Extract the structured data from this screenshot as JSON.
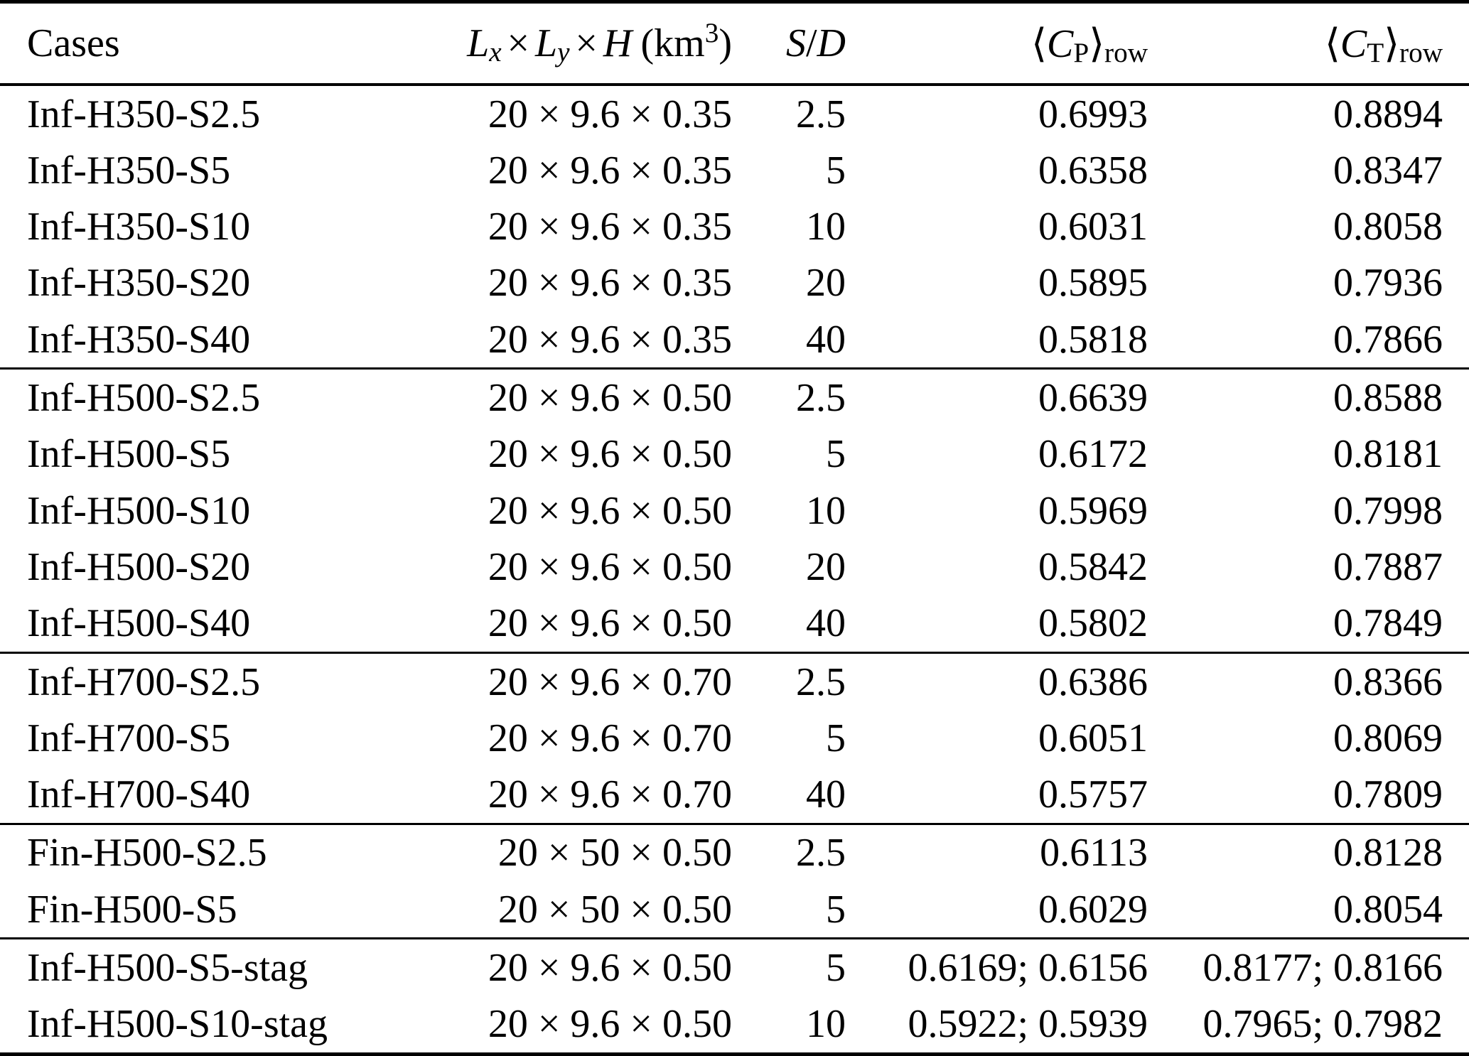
{
  "colors": {
    "text": "#000000",
    "background": "#ffffff",
    "rule": "#000000"
  },
  "header": {
    "cases": "Cases",
    "dims": {
      "L": "L",
      "x": "x",
      "y": "y",
      "times": "×",
      "H": "H",
      "unit_open": "(km",
      "unit_exponent": "3",
      "unit_close": ")"
    },
    "sd": {
      "S": "S",
      "slash": "/",
      "D": "D"
    },
    "cp": {
      "langle": "⟨",
      "C": "C",
      "subscript": "P",
      "rangle": "⟩",
      "row": "row"
    },
    "ct": {
      "langle": "⟨",
      "C": "C",
      "subscript": "T",
      "rangle": "⟩",
      "row": "row"
    }
  },
  "sections": [
    {
      "rows": [
        {
          "case": "Inf-H350-S2.5",
          "dims": "20 × 9.6 × 0.35",
          "sd": "2.5",
          "cp": "0.6993",
          "ct": "0.8894"
        },
        {
          "case": "Inf-H350-S5",
          "dims": "20 × 9.6 × 0.35",
          "sd": "5",
          "cp": "0.6358",
          "ct": "0.8347"
        },
        {
          "case": "Inf-H350-S10",
          "dims": "20 × 9.6 × 0.35",
          "sd": "10",
          "cp": "0.6031",
          "ct": "0.8058"
        },
        {
          "case": "Inf-H350-S20",
          "dims": "20 × 9.6 × 0.35",
          "sd": "20",
          "cp": "0.5895",
          "ct": "0.7936"
        },
        {
          "case": "Inf-H350-S40",
          "dims": "20 × 9.6 × 0.35",
          "sd": "40",
          "cp": "0.5818",
          "ct": "0.7866"
        }
      ]
    },
    {
      "rows": [
        {
          "case": "Inf-H500-S2.5",
          "dims": "20 × 9.6 × 0.50",
          "sd": "2.5",
          "cp": "0.6639",
          "ct": "0.8588"
        },
        {
          "case": "Inf-H500-S5",
          "dims": "20 × 9.6 × 0.50",
          "sd": "5",
          "cp": "0.6172",
          "ct": "0.8181"
        },
        {
          "case": "Inf-H500-S10",
          "dims": "20 × 9.6 × 0.50",
          "sd": "10",
          "cp": "0.5969",
          "ct": "0.7998"
        },
        {
          "case": "Inf-H500-S20",
          "dims": "20 × 9.6 × 0.50",
          "sd": "20",
          "cp": "0.5842",
          "ct": "0.7887"
        },
        {
          "case": "Inf-H500-S40",
          "dims": "20 × 9.6 × 0.50",
          "sd": "40",
          "cp": "0.5802",
          "ct": "0.7849"
        }
      ]
    },
    {
      "rows": [
        {
          "case": "Inf-H700-S2.5",
          "dims": "20 × 9.6 × 0.70",
          "sd": "2.5",
          "cp": "0.6386",
          "ct": "0.8366"
        },
        {
          "case": "Inf-H700-S5",
          "dims": "20 × 9.6 × 0.70",
          "sd": "5",
          "cp": "0.6051",
          "ct": "0.8069"
        },
        {
          "case": "Inf-H700-S40",
          "dims": "20 × 9.6 × 0.70",
          "sd": "40",
          "cp": "0.5757",
          "ct": "0.7809"
        }
      ]
    },
    {
      "rows": [
        {
          "case": "Fin-H500-S2.5",
          "dims": "20 × 50 × 0.50",
          "sd": "2.5",
          "cp": "0.6113",
          "ct": "0.8128"
        },
        {
          "case": "Fin-H500-S5",
          "dims": "20 × 50 × 0.50",
          "sd": "5",
          "cp": "0.6029",
          "ct": "0.8054"
        }
      ]
    },
    {
      "rows": [
        {
          "case": "Inf-H500-S5-stag",
          "dims": "20 × 9.6 × 0.50",
          "sd": "5",
          "cp": "0.6169; 0.6156",
          "ct": "0.8177; 0.8166"
        },
        {
          "case": "Inf-H500-S10-stag",
          "dims": "20 × 9.6 × 0.50",
          "sd": "10",
          "cp": "0.5922; 0.5939",
          "ct": "0.7965; 0.7982"
        }
      ]
    }
  ]
}
